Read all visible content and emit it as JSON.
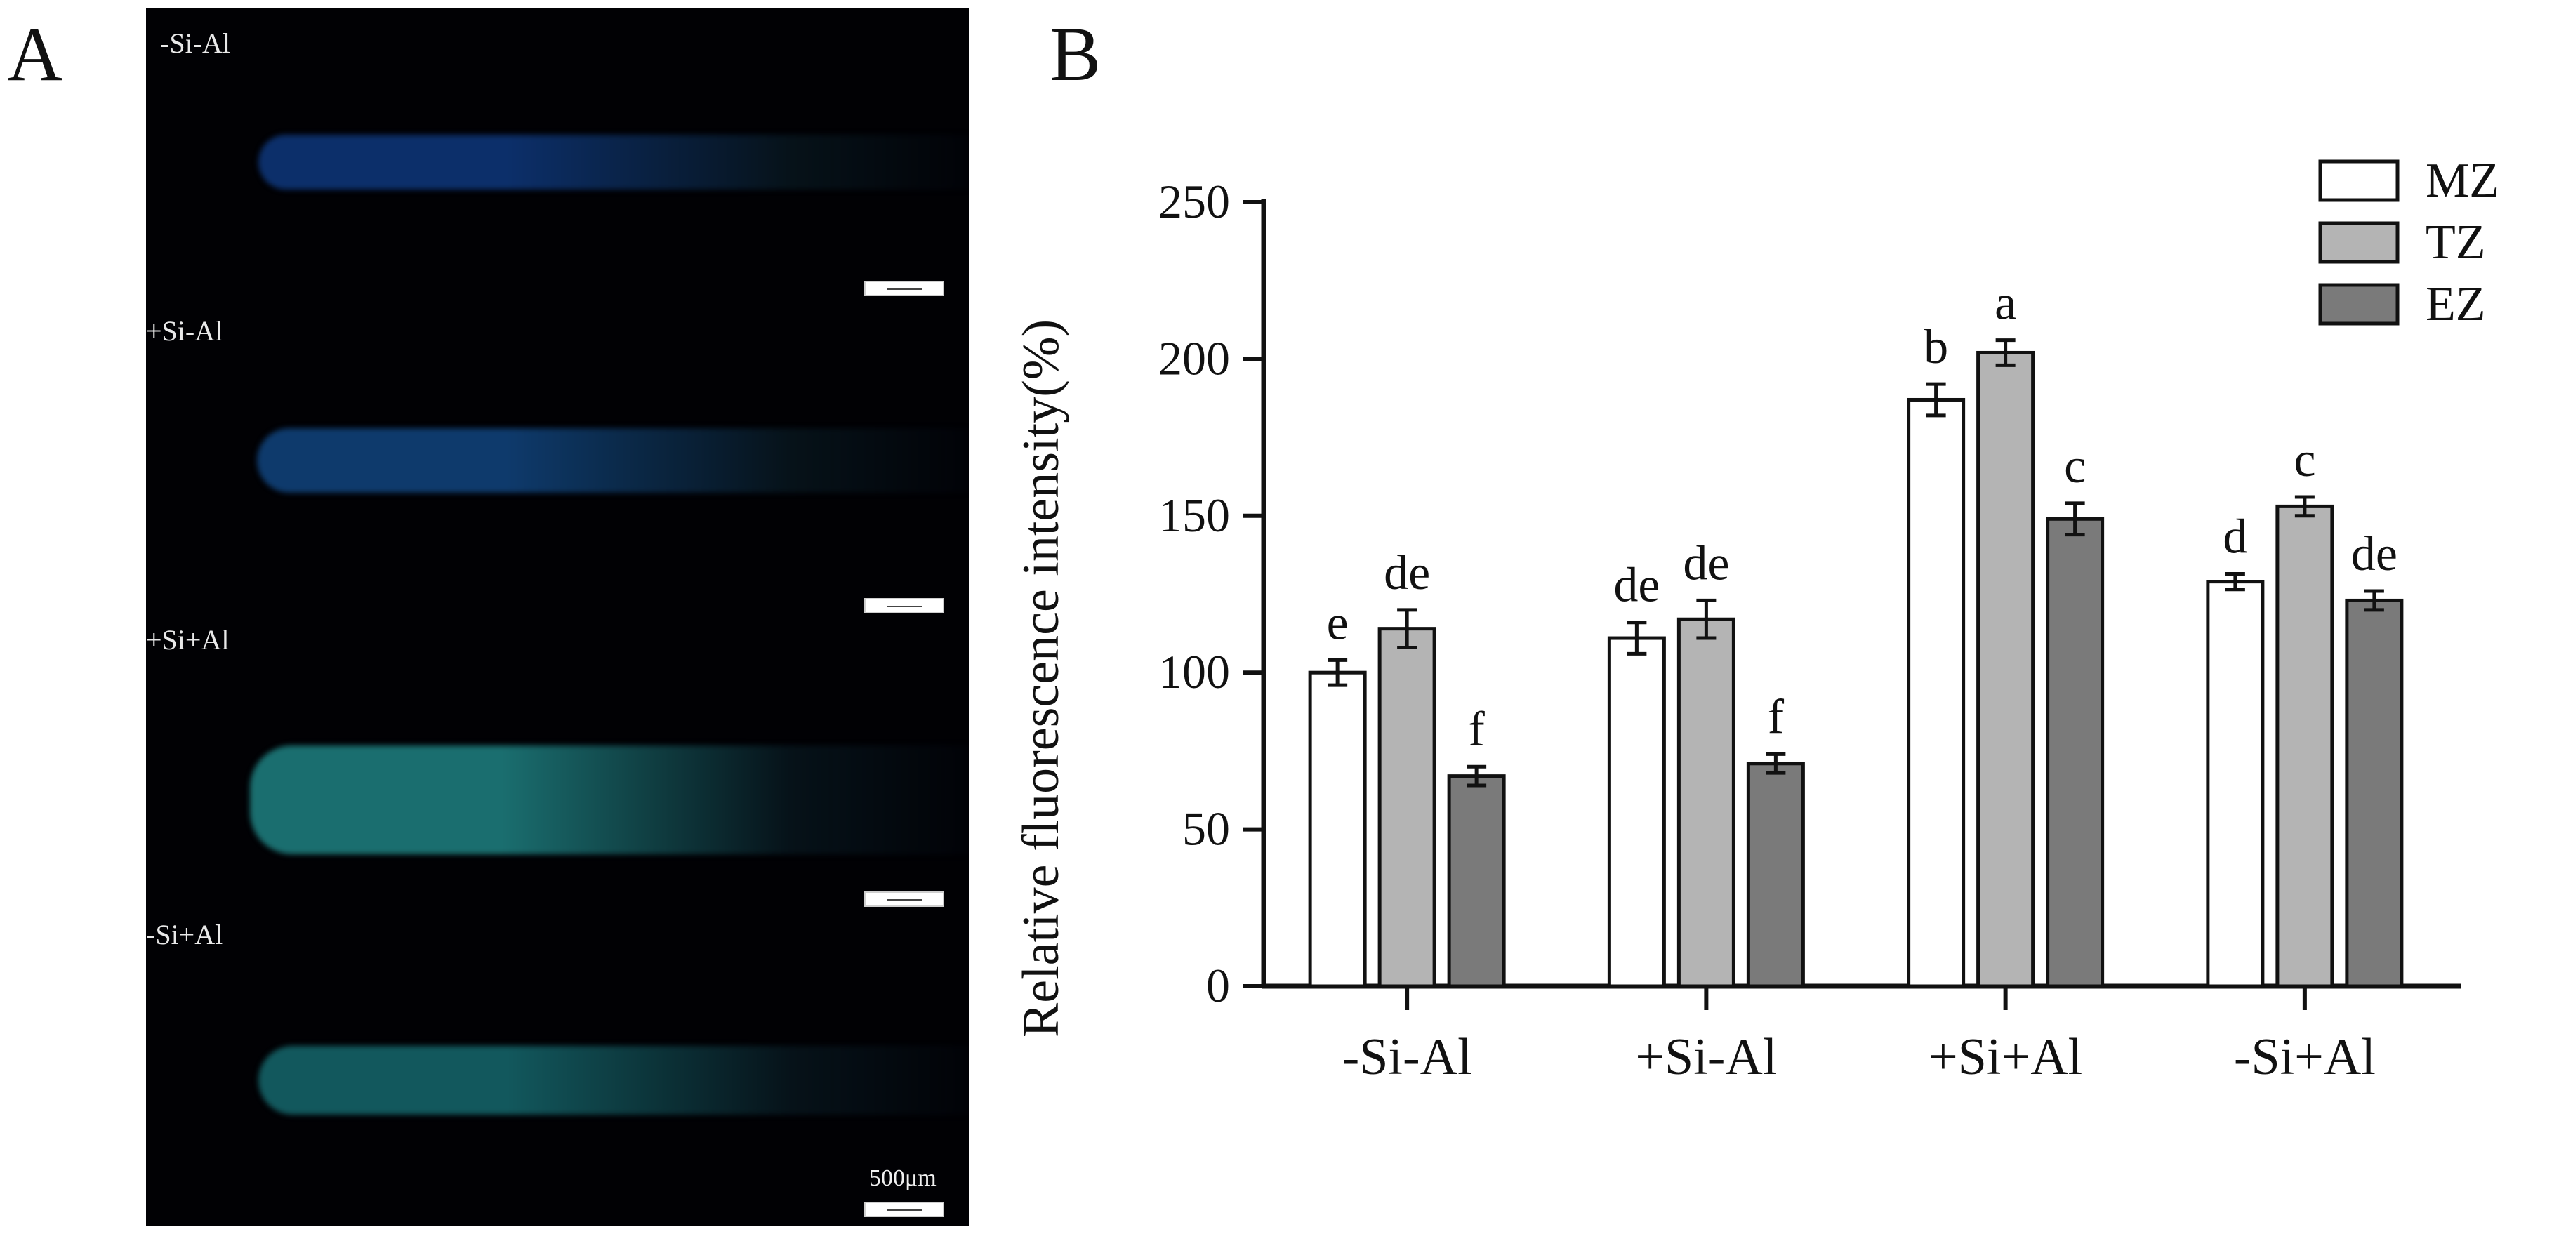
{
  "panels": {
    "a_label": "A",
    "b_label": "B"
  },
  "micrograph": {
    "labels": [
      "-Si-Al",
      "+Si-Al",
      "+Si+Al",
      "-Si+Al"
    ],
    "scale_text": "500μm",
    "root_colors": [
      "#0c2f6a",
      "#0e3a6c",
      "#1a6e6f",
      "#12585d"
    ]
  },
  "chart_data": {
    "type": "bar",
    "title": "",
    "xlabel": "",
    "ylabel": "Relative fluorescence intensity(%)",
    "ylim": [
      0,
      250
    ],
    "yticks": [
      0,
      50,
      100,
      150,
      200,
      250
    ],
    "categories": [
      "-Si-Al",
      "+Si-Al",
      "+Si+Al",
      "-Si+Al"
    ],
    "legend_position": "top-right",
    "grid": false,
    "series": [
      {
        "name": "MZ",
        "color": "#ffffff",
        "values": [
          100,
          111,
          187,
          129
        ],
        "errors": [
          4,
          5,
          5,
          2.5
        ],
        "letters": [
          "e",
          "de",
          "b",
          "d"
        ]
      },
      {
        "name": "TZ",
        "color": "#b4b4b4",
        "values": [
          114,
          117,
          202,
          153
        ],
        "errors": [
          6,
          6,
          4,
          3
        ],
        "letters": [
          "de",
          "de",
          "a",
          "c"
        ]
      },
      {
        "name": "EZ",
        "color": "#7a7a7a",
        "values": [
          67,
          71,
          149,
          123
        ],
        "errors": [
          3,
          3,
          5,
          3
        ],
        "letters": [
          "f",
          "f",
          "c",
          "de"
        ]
      }
    ]
  }
}
